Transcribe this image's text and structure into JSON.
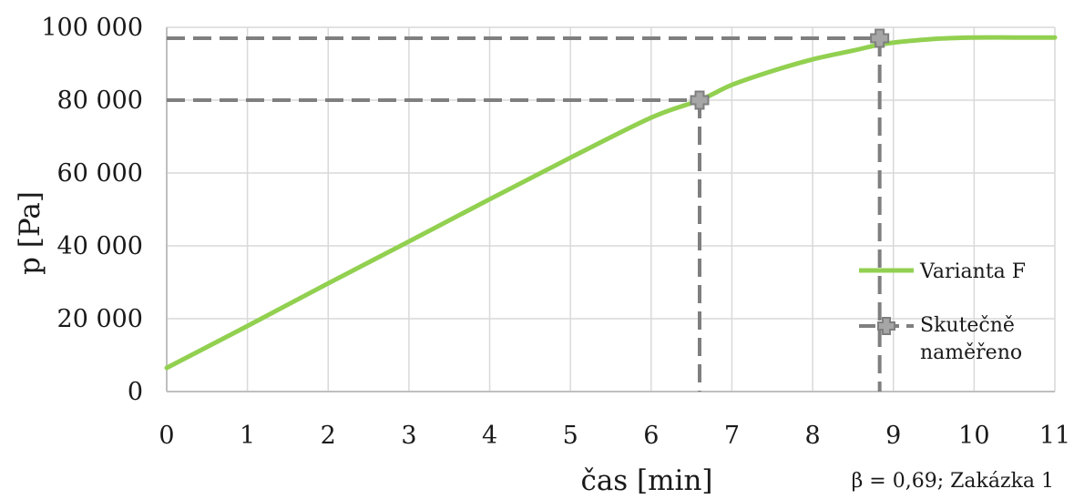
{
  "chart_data": {
    "type": "line",
    "xlabel": "čas [min]",
    "ylabel": "p [Pa]",
    "xlim": [
      0,
      11
    ],
    "ylim": [
      0,
      100000
    ],
    "x_ticks": [
      "0",
      "1",
      "2",
      "3",
      "4",
      "5",
      "6",
      "7",
      "8",
      "9",
      "10",
      "11"
    ],
    "y_ticks": [
      {
        "value": 0,
        "label": "0"
      },
      {
        "value": 20000,
        "label": "20 000"
      },
      {
        "value": 40000,
        "label": "40 000"
      },
      {
        "value": 60000,
        "label": "60 000"
      },
      {
        "value": 80000,
        "label": "80 000"
      },
      {
        "value": 100000,
        "label": "100 000"
      }
    ],
    "grid": true,
    "legend_position": "right",
    "annotation": "β = 0,69; Zakázka 1",
    "series": [
      {
        "name": "Varianta F",
        "color": "#92d050",
        "style": "line",
        "x": [
          0,
          1,
          2,
          3,
          4,
          5,
          6,
          6.6,
          7,
          7.5,
          8,
          8.5,
          8.9,
          9.5,
          10,
          10.5,
          11
        ],
        "y": [
          6500,
          18000,
          29700,
          41200,
          52800,
          64200,
          75200,
          80000,
          84200,
          88000,
          91200,
          93600,
          95500,
          96800,
          97200,
          97200,
          97200
        ]
      },
      {
        "name": "Skutečně naměřeno",
        "color": "#7f7f7f",
        "style": "dashed-marker",
        "points": [
          {
            "x": 6.6,
            "y": 80000
          },
          {
            "x": 8.83,
            "y": 97000
          }
        ]
      }
    ]
  }
}
